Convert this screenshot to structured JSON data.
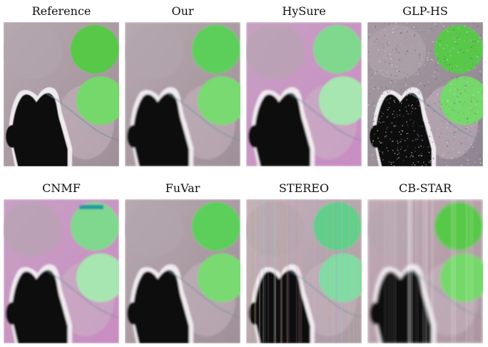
{
  "panels": [
    {
      "title": "Reference",
      "style": "sharp"
    },
    {
      "title": "Our",
      "style": "smooth"
    },
    {
      "title": "HySure",
      "style": "pastel"
    },
    {
      "title": "GLP-HS",
      "style": "noisy"
    },
    {
      "title": "CNMF",
      "style": "cnmf"
    },
    {
      "title": "FuVar",
      "style": "smooth"
    },
    {
      "title": "STEREO",
      "style": "streaks"
    },
    {
      "title": "CB-STAR",
      "style": "blocky"
    }
  ],
  "colors": {
    "terrain": "#b7a9b0",
    "terrain_dark": "#9f8f98",
    "water": "#0a0810",
    "field_green": "#58c84a",
    "field_light": "#74d86a",
    "shore": "#f2eef2",
    "pink": "#c98cc2"
  }
}
